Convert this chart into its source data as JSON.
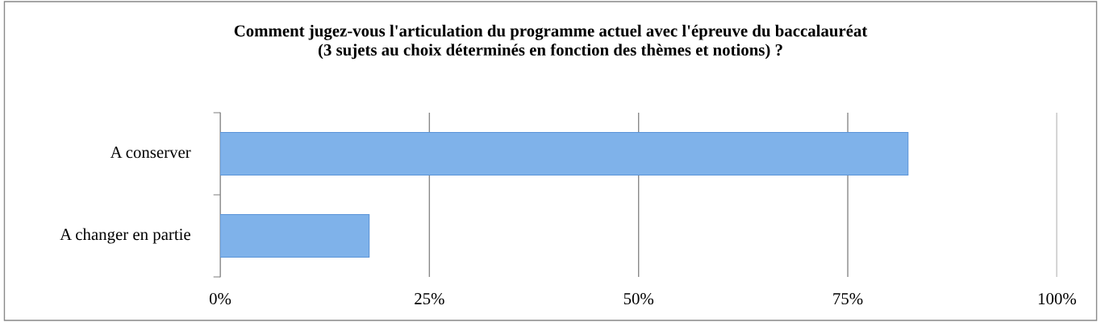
{
  "chart_data": {
    "type": "bar",
    "orientation": "horizontal",
    "title": "Comment jugez-vous l'articulation du programme actuel avec l'épreuve du baccalauréat\n(3 sujets au choix déterminés en fonction des thèmes et notions) ?",
    "categories": [
      "A conserver",
      "A changer en partie"
    ],
    "values": [
      82.2,
      17.8
    ],
    "color": "#7fb2ea",
    "xlim": [
      0,
      100
    ],
    "xticks": [
      {
        "value": 0,
        "label": "0%"
      },
      {
        "value": 25,
        "label": "25%"
      },
      {
        "value": 50,
        "label": "50%"
      },
      {
        "value": 75,
        "label": "75%"
      },
      {
        "value": 100,
        "label": "100%"
      }
    ],
    "grid": "x",
    "legend": false
  }
}
